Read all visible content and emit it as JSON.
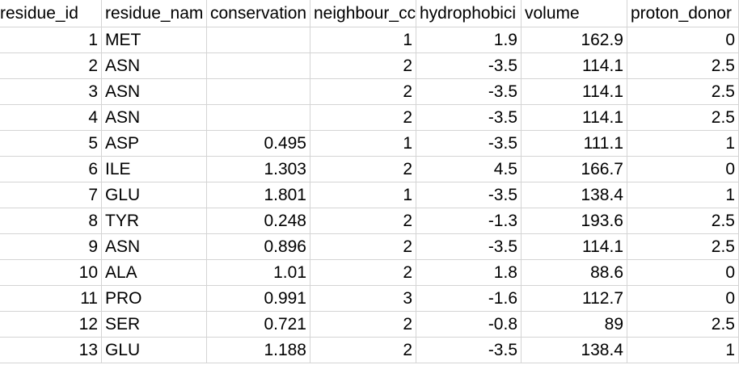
{
  "columns": [
    "residue_id",
    "residue_nam",
    "conservation",
    "neighbour_cc",
    "hydrophobici",
    "volume",
    "proton_donor"
  ],
  "rows": [
    [
      "1",
      "MET",
      "",
      "1",
      "1.9",
      "162.9",
      "0"
    ],
    [
      "2",
      "ASN",
      "",
      "2",
      "-3.5",
      "114.1",
      "2.5"
    ],
    [
      "3",
      "ASN",
      "",
      "2",
      "-3.5",
      "114.1",
      "2.5"
    ],
    [
      "4",
      "ASN",
      "",
      "2",
      "-3.5",
      "114.1",
      "2.5"
    ],
    [
      "5",
      "ASP",
      "0.495",
      "1",
      "-3.5",
      "111.1",
      "1"
    ],
    [
      "6",
      "ILE",
      "1.303",
      "2",
      "4.5",
      "166.7",
      "0"
    ],
    [
      "7",
      "GLU",
      "1.801",
      "1",
      "-3.5",
      "138.4",
      "1"
    ],
    [
      "8",
      "TYR",
      "0.248",
      "2",
      "-1.3",
      "193.6",
      "2.5"
    ],
    [
      "9",
      "ASN",
      "0.896",
      "2",
      "-3.5",
      "114.1",
      "2.5"
    ],
    [
      "10",
      "ALA",
      "1.01",
      "2",
      "1.8",
      "88.6",
      "0"
    ],
    [
      "11",
      "PRO",
      "0.991",
      "3",
      "-1.6",
      "112.7",
      "0"
    ],
    [
      "12",
      "SER",
      "0.721",
      "2",
      "-0.8",
      "89",
      "2.5"
    ],
    [
      "13",
      "GLU",
      "1.188",
      "2",
      "-3.5",
      "138.4",
      "1"
    ]
  ]
}
